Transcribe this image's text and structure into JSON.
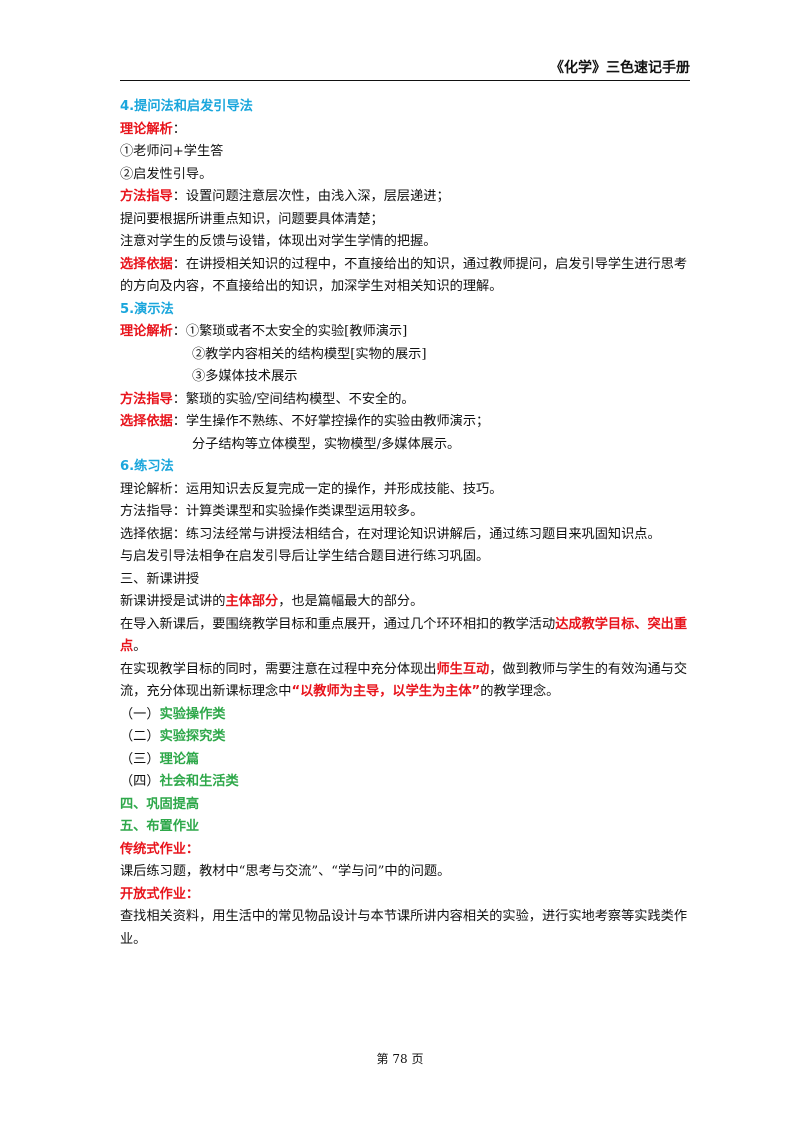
{
  "header": {
    "title": "《化学》三色速记手册"
  },
  "sections": {
    "s4": {
      "title": "4.提问法和启发引导法",
      "theory_label": "理论解析",
      "theory_colon": "：",
      "theory_items": [
        "①老师问+学生答",
        "②启发性引导。"
      ],
      "method_label": "方法指导",
      "method_text": "：设置问题注意层次性，由浅入深，层层递进；",
      "method_lines": [
        "提问要根据所讲重点知识，问题要具体清楚；",
        "注意对学生的反馈与设错，体现出对学生学情的把握。"
      ],
      "choice_label": "选择依据",
      "choice_text": "：在讲授相关知识的过程中，不直接给出的知识，通过教师提问，启发引导学生进行思考的方向及内容，不直接给出的知识，加深学生对相关知识的理解。"
    },
    "s5": {
      "title": "5.演示法",
      "theory_label": "理论解析",
      "theory_first": "：①繁琐或者不太安全的实验[教师演示]",
      "theory_items": [
        "②教学内容相关的结构模型[实物的展示]",
        "③多媒体技术展示"
      ],
      "method_label": "方法指导",
      "method_text": "：繁琐的实验/空间结构模型、不安全的。",
      "choice_label": "选择依据",
      "choice_text": "：学生操作不熟练、不好掌控操作的实验由教师演示；",
      "choice_line2": "分子结构等立体模型，实物模型/多媒体展示。"
    },
    "s6": {
      "title": "6.练习法",
      "lines": [
        "理论解析：运用知识去反复完成一定的操作，并形成技能、技巧。",
        "方法指导：计算类课型和实验操作类课型运用较多。",
        "选择依据：练习法经常与讲授法相结合，在对理论知识讲解后，通过练习题目来巩固知识点。",
        "与启发引导法相争在启发引导后让学生结合题目进行练习巩固。"
      ]
    },
    "s3": {
      "title": "三、新课讲授",
      "p1_a": "新课讲授是试讲的",
      "p1_b": "主体部分",
      "p1_c": "，也是篇幅最大的部分。",
      "p2_a": "在导入新课后，要围绕教学目标和重点展开，通过几个环环相扣的教学活动",
      "p2_b": "达成教学目标、突出重点",
      "p2_c": "。",
      "p3_a": "在实现教学目标的同时，需要注意在过程中充分体现出",
      "p3_b": "师生互动",
      "p3_c": "，做到教师与学生的有效沟通与交流，充分体现出新课标理念中",
      "p3_d": "“以教师为主导，以学生为主体”",
      "p3_e": "的教学理念。",
      "sub": [
        {
          "num": "（一）",
          "text": "实验操作类"
        },
        {
          "num": "（二）",
          "text": "实验探究类"
        },
        {
          "num": "（三）",
          "text": "理论篇"
        },
        {
          "num": "（四）",
          "text": "社会和生活类"
        }
      ]
    },
    "s_consolidate": {
      "title": "四、巩固提高"
    },
    "s_homework": {
      "title": "五、布置作业",
      "trad_label": "传统式作业：",
      "trad_text": "课后练习题，教材中“思考与交流”、“学与问”中的问题。",
      "open_label": "开放式作业：",
      "open_text": "查找相关资料，用生活中的常见物品设计与本节课所讲内容相关的实验，进行实地考察等实践类作业。"
    }
  },
  "footer": {
    "page": "第 78 页"
  }
}
